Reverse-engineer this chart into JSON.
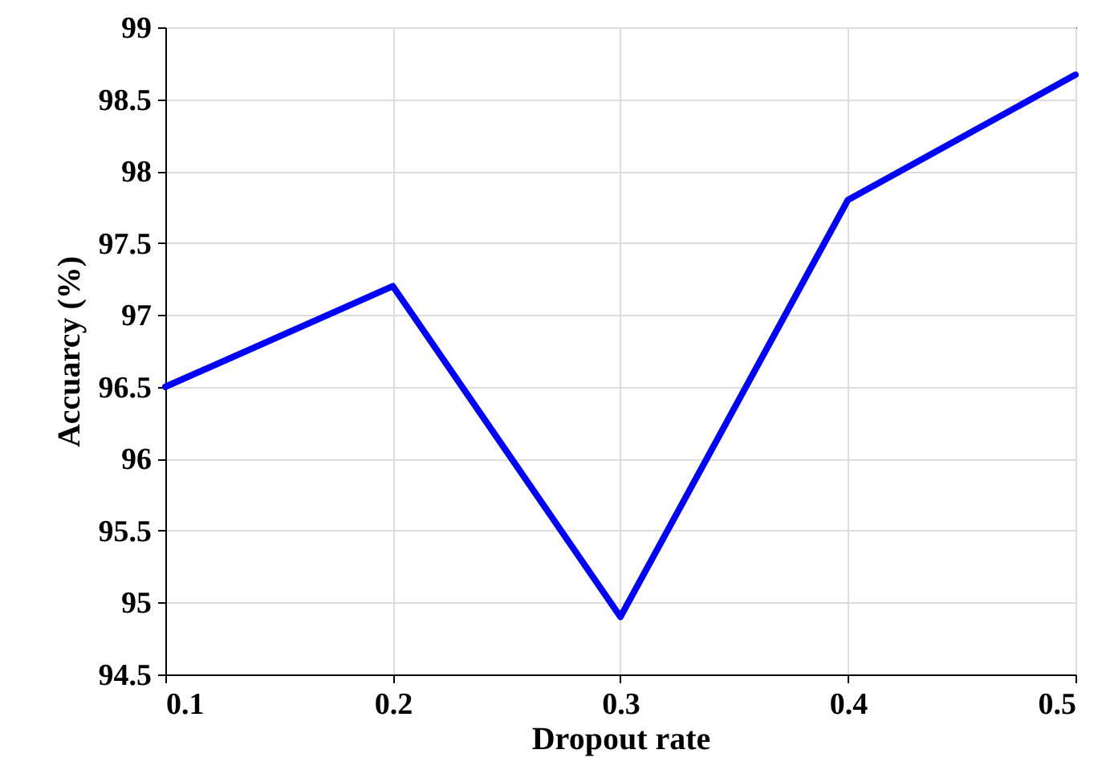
{
  "chart_data": {
    "type": "line",
    "xlabel": "Dropout rate",
    "ylabel": "Accuarcy (%)",
    "x": [
      0.1,
      0.2,
      0.3,
      0.4,
      0.5
    ],
    "series": [
      {
        "color": "#0000ff",
        "values": [
          96.5,
          97.2,
          94.9,
          97.8,
          98.67
        ]
      }
    ],
    "xlim": [
      0.1,
      0.5
    ],
    "xticks": [
      0.1,
      0.2,
      0.3,
      0.4,
      0.5
    ],
    "ylim": [
      94.5,
      99
    ],
    "yticks": [
      94.5,
      95,
      95.5,
      96,
      96.5,
      97,
      97.5,
      98,
      98.5,
      99
    ],
    "grid": true,
    "marker": "none",
    "line_style": "solid"
  }
}
